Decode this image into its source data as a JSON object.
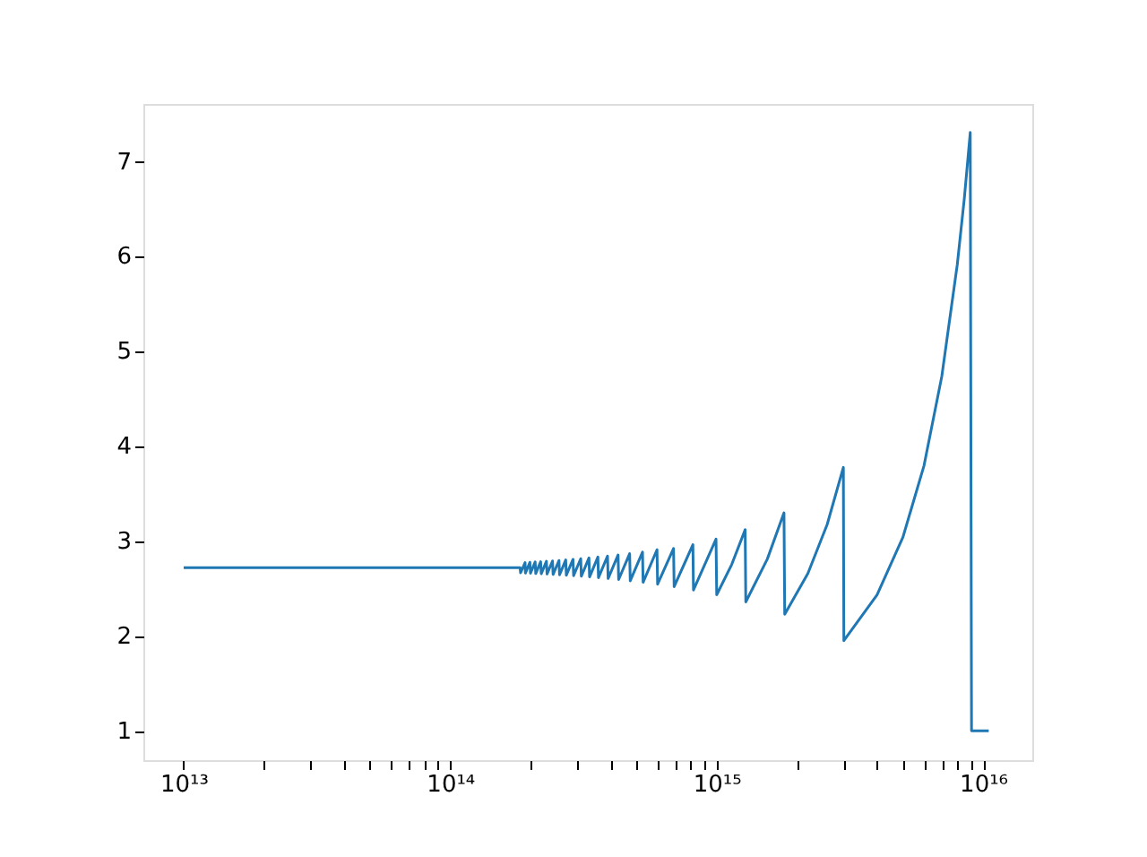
{
  "chart_data": {
    "type": "line",
    "log": "x",
    "grid": false,
    "marker": "none",
    "line_style": "solid",
    "xlim": [
      7060000000000.0,
      1.53e+16
    ],
    "ylim": [
      0.69,
      7.6
    ],
    "xticks": [
      {
        "value": 10000000000000.0,
        "label": "10¹³"
      },
      {
        "value": 20000000000000.0,
        "label": null
      },
      {
        "value": 30000000000000.0,
        "label": null
      },
      {
        "value": 40000000000000.0,
        "label": null
      },
      {
        "value": 50000000000000.0,
        "label": null
      },
      {
        "value": 60000000000000.0,
        "label": null
      },
      {
        "value": 70000000000000.0,
        "label": null
      },
      {
        "value": 80000000000000.0,
        "label": null
      },
      {
        "value": 90000000000000.0,
        "label": null
      },
      {
        "value": 100000000000000.0,
        "label": "10¹⁴"
      },
      {
        "value": 200000000000000.0,
        "label": null
      },
      {
        "value": 300000000000000.0,
        "label": null
      },
      {
        "value": 400000000000000.0,
        "label": null
      },
      {
        "value": 500000000000000.0,
        "label": null
      },
      {
        "value": 600000000000000.0,
        "label": null
      },
      {
        "value": 700000000000000.0,
        "label": null
      },
      {
        "value": 800000000000000.0,
        "label": null
      },
      {
        "value": 900000000000000.0,
        "label": null
      },
      {
        "value": 1000000000000000.0,
        "label": "10¹⁵"
      },
      {
        "value": 2000000000000000.0,
        "label": null
      },
      {
        "value": 3000000000000000.0,
        "label": null
      },
      {
        "value": 4000000000000000.0,
        "label": null
      },
      {
        "value": 5000000000000000.0,
        "label": null
      },
      {
        "value": 6000000000000000.0,
        "label": null
      },
      {
        "value": 7000000000000000.0,
        "label": null
      },
      {
        "value": 8000000000000000.0,
        "label": null
      },
      {
        "value": 9000000000000000.0,
        "label": null
      },
      {
        "value": 1e+16,
        "label": "10¹⁶"
      }
    ],
    "yticks": [
      1,
      2,
      3,
      4,
      5,
      6,
      7
    ],
    "series": [
      {
        "color": "#1f77b4",
        "x": [
          10000000000000.0,
          50000000000000.0,
          150000000000000.0,
          183000000000000.0,
          183800000000000.0,
          191100000000000.0,
          191600000000000.0,
          199200000000000.0,
          200200000000000.0,
          208500000000000.0,
          209500000000000.0,
          218600000000000.0,
          219700000000000.0,
          229800000000000.0,
          231000000000000.0,
          242200000000000.0,
          243400000000000.0,
          256100000000000.0,
          257400000000000.0,
          271500000000000.0,
          272900000000000.0,
          289200000000000.0,
          290600000000000.0,
          309100000000000.0,
          310600000000000.0,
          331900000000000.0,
          333600000000000.0,
          358500000000000.0,
          360300000000000.0,
          389600000000000.0,
          391600000000000.0,
          426800000000000.0,
          428900000000000.0,
          471700000000000.0,
          474100000000000.0,
          527200000000000.0,
          529800000000000.0,
          597500000000000.0,
          600500000000000.0,
          689300000000000.0,
          692800000000000.0,
          814700000000000.0,
          818800000000000.0,
          995000000000000.0,
          1000800000000000.0,
          1140000000000000.0,
          1280000000000000.0,
          1286800000000000.0,
          1550000000000000.0,
          1790000000000000.0,
          1801400000000000.0,
          2200000000000000.0,
          2600000000000000.0,
          2990000000000000.0,
          3002400000000000.0,
          4000000000000000.0,
          5000000000000000.0,
          6000000000000000.0,
          7000000000000000.0,
          8000000000000000.0,
          8500000000000000.0,
          8950000000000000.0,
          9050000000000000.0,
          1.05e+16
        ],
        "values": [
          2.718,
          2.718,
          2.718,
          2.718,
          2.663,
          2.771,
          2.66,
          2.774,
          2.658,
          2.777,
          2.655,
          2.78,
          2.653,
          2.784,
          2.65,
          2.788,
          2.646,
          2.793,
          2.642,
          2.799,
          2.638,
          2.805,
          2.633,
          2.812,
          2.627,
          2.82,
          2.62,
          2.829,
          2.612,
          2.839,
          2.603,
          2.851,
          2.592,
          2.865,
          2.579,
          2.881,
          2.563,
          2.906,
          2.543,
          2.92,
          2.517,
          2.96,
          2.482,
          3.018,
          2.432,
          2.752,
          3.117,
          2.356,
          2.808,
          3.295,
          2.226,
          2.656,
          3.173,
          3.773,
          1.948,
          2.431,
          3.036,
          3.79,
          4.732,
          5.908,
          6.6,
          7.3,
          1.0,
          1.0
        ]
      }
    ]
  }
}
